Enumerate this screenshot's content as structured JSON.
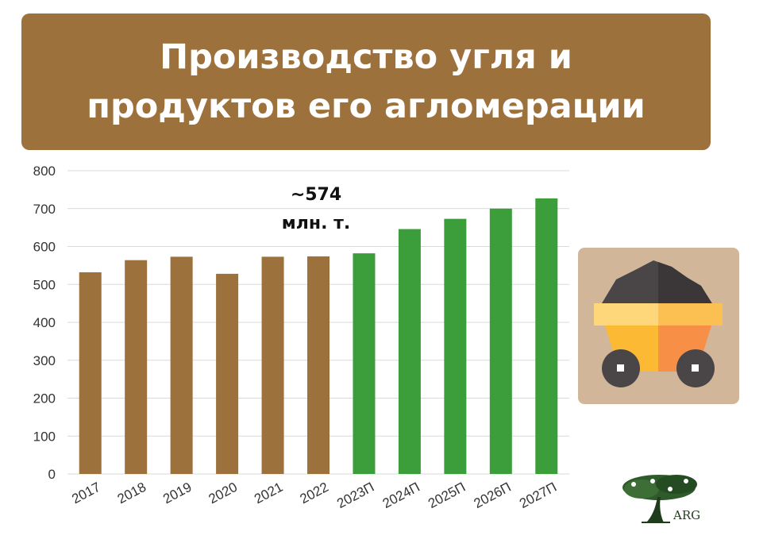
{
  "title": "Производство угля и\nпродуктов его агломерации",
  "annotation": {
    "value": "~574",
    "unit": "млн. т."
  },
  "logo_text": "ARG",
  "icons": {
    "illustration": "coal-cart-icon",
    "logo": "tree-logo-icon"
  },
  "colors": {
    "title_bg": "#9c713b",
    "historical": "#9c713b",
    "forecast": "#3c9e3a",
    "card_bg": "#d2b69a"
  },
  "chart_data": {
    "type": "bar",
    "categories": [
      "2017",
      "2018",
      "2019",
      "2020",
      "2021",
      "2022",
      "2023П",
      "2024П",
      "2025П",
      "2026П",
      "2027П"
    ],
    "values": [
      532,
      564,
      573,
      528,
      573,
      574,
      582,
      646,
      673,
      700,
      727
    ],
    "series_kind": [
      "historical",
      "historical",
      "historical",
      "historical",
      "historical",
      "historical",
      "forecast",
      "forecast",
      "forecast",
      "forecast",
      "forecast"
    ],
    "ylim": [
      0,
      800
    ],
    "yticks": [
      0,
      100,
      200,
      300,
      400,
      500,
      600,
      700,
      800
    ],
    "grid": true,
    "xlabel": "",
    "ylabel": ""
  }
}
